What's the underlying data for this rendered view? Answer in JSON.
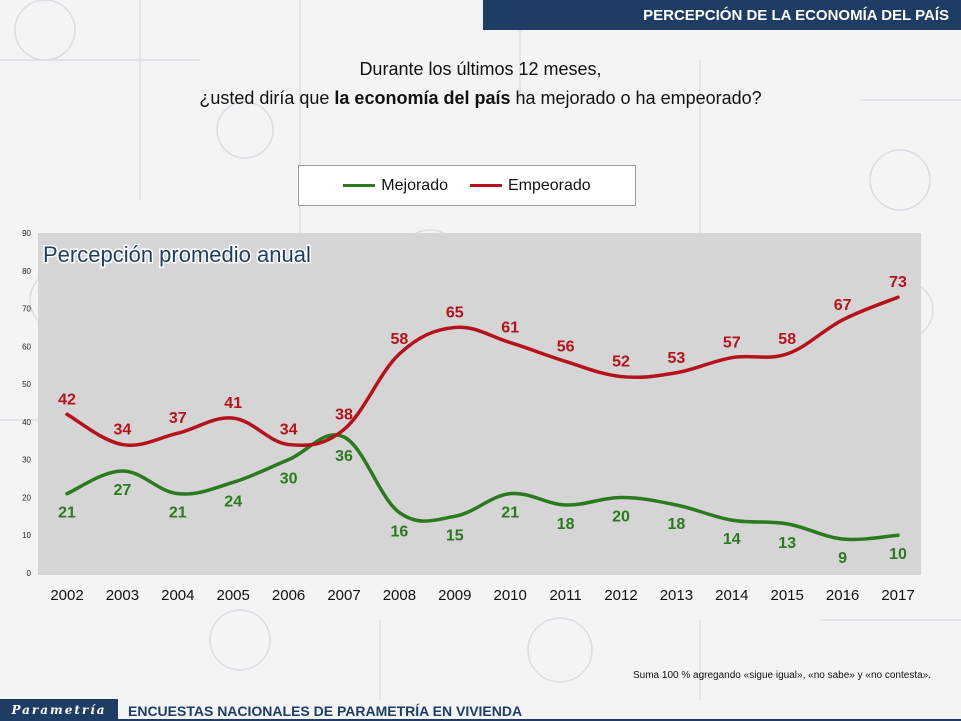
{
  "header": {
    "title": "PERCEPCIÓN DE LA ECONOMÍA DEL PAÍS"
  },
  "question": {
    "line1": "Durante los últimos 12 meses,",
    "line2_pre": "¿usted diría que ",
    "line2_bold": "la economía del país",
    "line2_post": " ha mejorado o ha empeorado?"
  },
  "legend": [
    {
      "label": "Mejorado",
      "color": "#2a7a1e"
    },
    {
      "label": "Empeorado",
      "color": "#b5121b"
    }
  ],
  "note": "Suma 100 %  agregando «sigue igual», «no sabe» y «no contesta».",
  "footer": {
    "logo": "Parametría",
    "text": "ENCUESTAS NACIONALES DE PARAMETRÍA EN VIVIENDA"
  },
  "chart_data": {
    "type": "line",
    "title": "Percepción promedio anual",
    "categories": [
      "2002",
      "2003",
      "2004",
      "2005",
      "2006",
      "2007",
      "2008",
      "2009",
      "2010",
      "2011",
      "2012",
      "2013",
      "2014",
      "2015",
      "2016",
      "2017"
    ],
    "series": [
      {
        "name": "Mejorado",
        "color": "#2a7a1e",
        "values": [
          21,
          27,
          21,
          24,
          30,
          36,
          16,
          15,
          21,
          18,
          20,
          18,
          14,
          13,
          9,
          10
        ]
      },
      {
        "name": "Empeorado",
        "color": "#b5121b",
        "values": [
          42,
          34,
          37,
          41,
          34,
          38,
          58,
          65,
          61,
          56,
          52,
          53,
          57,
          58,
          67,
          73
        ]
      }
    ],
    "ylim": [
      0,
      90
    ],
    "yticks": [
      "0",
      "10",
      "20",
      "30",
      "40",
      "50",
      "60",
      "70",
      "80",
      "90"
    ],
    "grid": false,
    "legend_position": "top"
  }
}
